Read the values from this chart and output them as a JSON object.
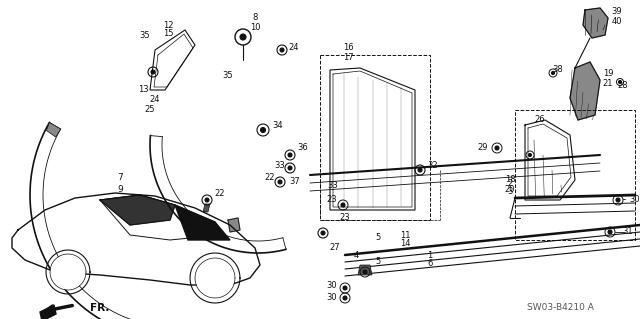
{
  "bg_color": "#ffffff",
  "line_color": "#111111",
  "diagram_id": "SW03-B4210 A",
  "fr_label": "FR.",
  "figsize": [
    6.4,
    3.19
  ],
  "dpi": 100
}
